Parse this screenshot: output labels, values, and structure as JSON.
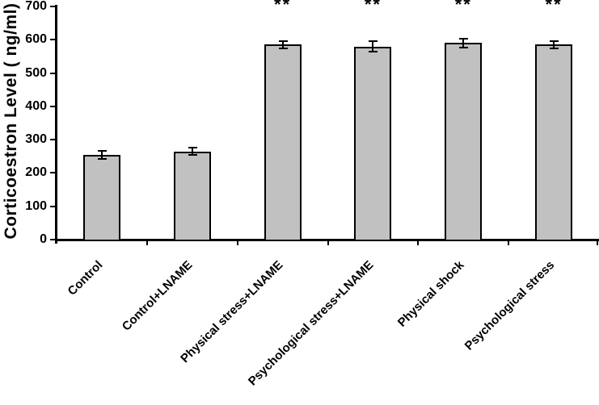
{
  "chart_data": {
    "type": "bar",
    "title": "",
    "xlabel": "",
    "ylabel": "Corticoestron Level ( ng/ml)",
    "ylim": [
      0,
      700
    ],
    "yticks": [
      0,
      100,
      200,
      300,
      400,
      500,
      600,
      700
    ],
    "grid": false,
    "legend": null,
    "categories": [
      "Control",
      "Control+LNAME",
      "Physical stress+LNAME",
      "Psychological stress+LNAME",
      "Physical shock",
      "Psychological stress"
    ],
    "values": [
      255,
      265,
      585,
      580,
      590,
      585
    ],
    "errors": [
      12,
      10,
      12,
      15,
      14,
      12
    ],
    "significance": [
      "",
      "",
      "**",
      "**",
      "**",
      "**"
    ],
    "bar_fill": "#c1c1c1",
    "bar_stroke": "#000000",
    "axis_color": "#000000",
    "text_color": "#000000"
  }
}
